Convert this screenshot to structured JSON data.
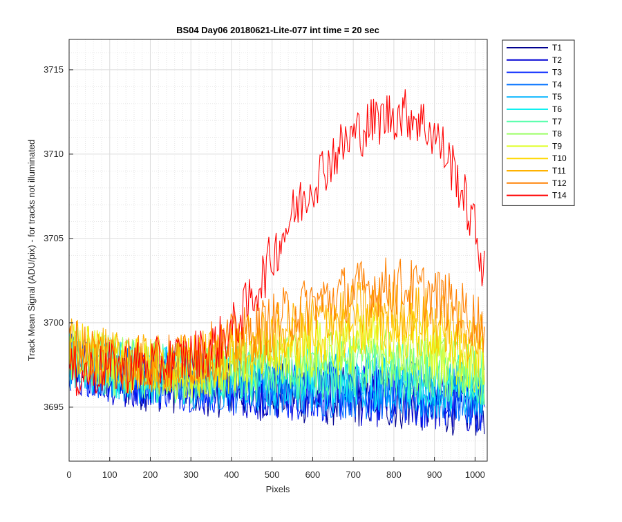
{
  "chart_data": {
    "type": "line",
    "title": "BS04 Day06 20180621-Lite-077 int time = 20 sec",
    "xlabel": "Pixels",
    "ylabel": "Track Mean Signal (ADU/pix) - for tracks not illuminated",
    "xlim": [
      0,
      1030
    ],
    "ylim": [
      3691.8,
      3716.8
    ],
    "x_ticks": [
      0,
      100,
      200,
      300,
      400,
      500,
      600,
      700,
      800,
      900,
      1000
    ],
    "y_ticks": [
      3695,
      3700,
      3705,
      3710,
      3715
    ],
    "x_tick_labels": [
      "0",
      "100",
      "200",
      "300",
      "400",
      "500",
      "600",
      "700",
      "800",
      "900",
      "1000"
    ],
    "y_tick_labels": [
      "3695",
      "3700",
      "3705",
      "3710",
      "3715"
    ],
    "grid": true,
    "minor_grid": true,
    "legend_position": "outside-top-right",
    "x": [
      0,
      50,
      100,
      150,
      200,
      250,
      300,
      350,
      400,
      450,
      500,
      550,
      600,
      650,
      700,
      750,
      800,
      850,
      900,
      950,
      1000,
      1023
    ],
    "series": [
      {
        "name": "T1",
        "color": "#00008f",
        "values": [
          3697.5,
          3697.2,
          3696.8,
          3696.6,
          3696.5,
          3696.4,
          3696.3,
          3696.2,
          3696.1,
          3696.0,
          3695.9,
          3695.8,
          3695.7,
          3695.6,
          3695.6,
          3695.5,
          3695.4,
          3695.3,
          3695.2,
          3695.1,
          3695.0,
          3695.0
        ]
      },
      {
        "name": "T2",
        "color": "#0000d4",
        "values": [
          3697.6,
          3697.3,
          3696.9,
          3696.7,
          3696.6,
          3696.5,
          3696.4,
          3696.3,
          3696.2,
          3696.1,
          3696.0,
          3695.9,
          3695.8,
          3695.8,
          3695.7,
          3695.6,
          3695.5,
          3695.4,
          3695.3,
          3695.2,
          3695.1,
          3695.1
        ]
      },
      {
        "name": "T3",
        "color": "#0022ff",
        "values": [
          3697.7,
          3697.4,
          3697.0,
          3696.8,
          3696.7,
          3696.6,
          3696.5,
          3696.4,
          3696.3,
          3696.2,
          3696.1,
          3696.0,
          3696.0,
          3695.9,
          3695.8,
          3695.8,
          3695.7,
          3695.6,
          3695.5,
          3695.4,
          3695.3,
          3695.3
        ]
      },
      {
        "name": "T4",
        "color": "#0070ff",
        "values": [
          3697.8,
          3697.5,
          3697.1,
          3696.9,
          3696.8,
          3696.7,
          3696.6,
          3696.5,
          3696.4,
          3696.4,
          3696.3,
          3696.2,
          3696.2,
          3696.1,
          3696.1,
          3696.0,
          3696.0,
          3695.9,
          3695.8,
          3695.7,
          3695.6,
          3695.6
        ]
      },
      {
        "name": "T5",
        "color": "#00b4ff",
        "values": [
          3697.9,
          3697.6,
          3697.2,
          3697.0,
          3696.9,
          3696.8,
          3696.7,
          3696.7,
          3696.6,
          3696.6,
          3696.5,
          3696.5,
          3696.5,
          3696.4,
          3696.4,
          3696.4,
          3696.3,
          3696.2,
          3696.1,
          3696.0,
          3695.9,
          3695.9
        ]
      },
      {
        "name": "T6",
        "color": "#10f0f0",
        "values": [
          3698.0,
          3697.7,
          3697.3,
          3697.1,
          3697.0,
          3696.9,
          3696.9,
          3696.8,
          3696.8,
          3696.8,
          3696.8,
          3696.8,
          3696.8,
          3696.8,
          3696.8,
          3696.8,
          3696.7,
          3696.6,
          3696.5,
          3696.4,
          3696.3,
          3696.2
        ]
      },
      {
        "name": "T7",
        "color": "#55ffaa",
        "values": [
          3698.1,
          3697.8,
          3697.4,
          3697.2,
          3697.1,
          3697.0,
          3697.0,
          3697.0,
          3697.0,
          3697.0,
          3697.1,
          3697.1,
          3697.2,
          3697.2,
          3697.3,
          3697.3,
          3697.2,
          3697.1,
          3697.0,
          3696.8,
          3696.6,
          3696.5
        ]
      },
      {
        "name": "T8",
        "color": "#9aff65",
        "values": [
          3698.2,
          3697.9,
          3697.5,
          3697.3,
          3697.2,
          3697.1,
          3697.1,
          3697.2,
          3697.3,
          3697.4,
          3697.5,
          3697.6,
          3697.7,
          3697.8,
          3697.9,
          3697.9,
          3697.8,
          3697.7,
          3697.5,
          3697.3,
          3697.0,
          3696.9
        ]
      },
      {
        "name": "T9",
        "color": "#dfff20",
        "values": [
          3698.3,
          3698.0,
          3697.6,
          3697.4,
          3697.3,
          3697.2,
          3697.3,
          3697.4,
          3697.6,
          3697.8,
          3698.0,
          3698.2,
          3698.4,
          3698.6,
          3698.7,
          3698.8,
          3698.7,
          3698.6,
          3698.3,
          3698.0,
          3697.6,
          3697.4
        ]
      },
      {
        "name": "T10",
        "color": "#ffd700",
        "values": [
          3698.4,
          3698.1,
          3697.7,
          3697.5,
          3697.4,
          3697.3,
          3697.5,
          3697.7,
          3698.0,
          3698.3,
          3698.6,
          3698.9,
          3699.2,
          3699.4,
          3699.6,
          3699.7,
          3699.6,
          3699.5,
          3699.2,
          3698.8,
          3698.3,
          3698.1
        ]
      },
      {
        "name": "T11",
        "color": "#ffb200",
        "values": [
          3698.5,
          3698.2,
          3697.8,
          3697.6,
          3697.5,
          3697.5,
          3697.7,
          3698.0,
          3698.4,
          3698.8,
          3699.3,
          3699.7,
          3700.1,
          3700.4,
          3700.7,
          3700.8,
          3700.8,
          3700.6,
          3700.2,
          3699.7,
          3699.1,
          3698.9
        ]
      },
      {
        "name": "T12",
        "color": "#ff8000",
        "values": [
          3698.6,
          3698.3,
          3697.9,
          3697.7,
          3697.6,
          3697.6,
          3697.9,
          3698.3,
          3698.8,
          3699.4,
          3700.0,
          3700.6,
          3701.1,
          3701.5,
          3701.9,
          3702.1,
          3702.2,
          3702.0,
          3701.6,
          3701.0,
          3700.2,
          3699.9
        ]
      },
      {
        "name": "T14",
        "color": "#ff0000",
        "values": [
          3697.0,
          3697.1,
          3697.3,
          3697.4,
          3697.5,
          3697.7,
          3698.0,
          3698.4,
          3699.5,
          3701.4,
          3703.9,
          3706.4,
          3708.3,
          3709.9,
          3711.1,
          3711.9,
          3712.4,
          3712.3,
          3711.2,
          3709.0,
          3705.5,
          3703.0
        ]
      }
    ]
  }
}
